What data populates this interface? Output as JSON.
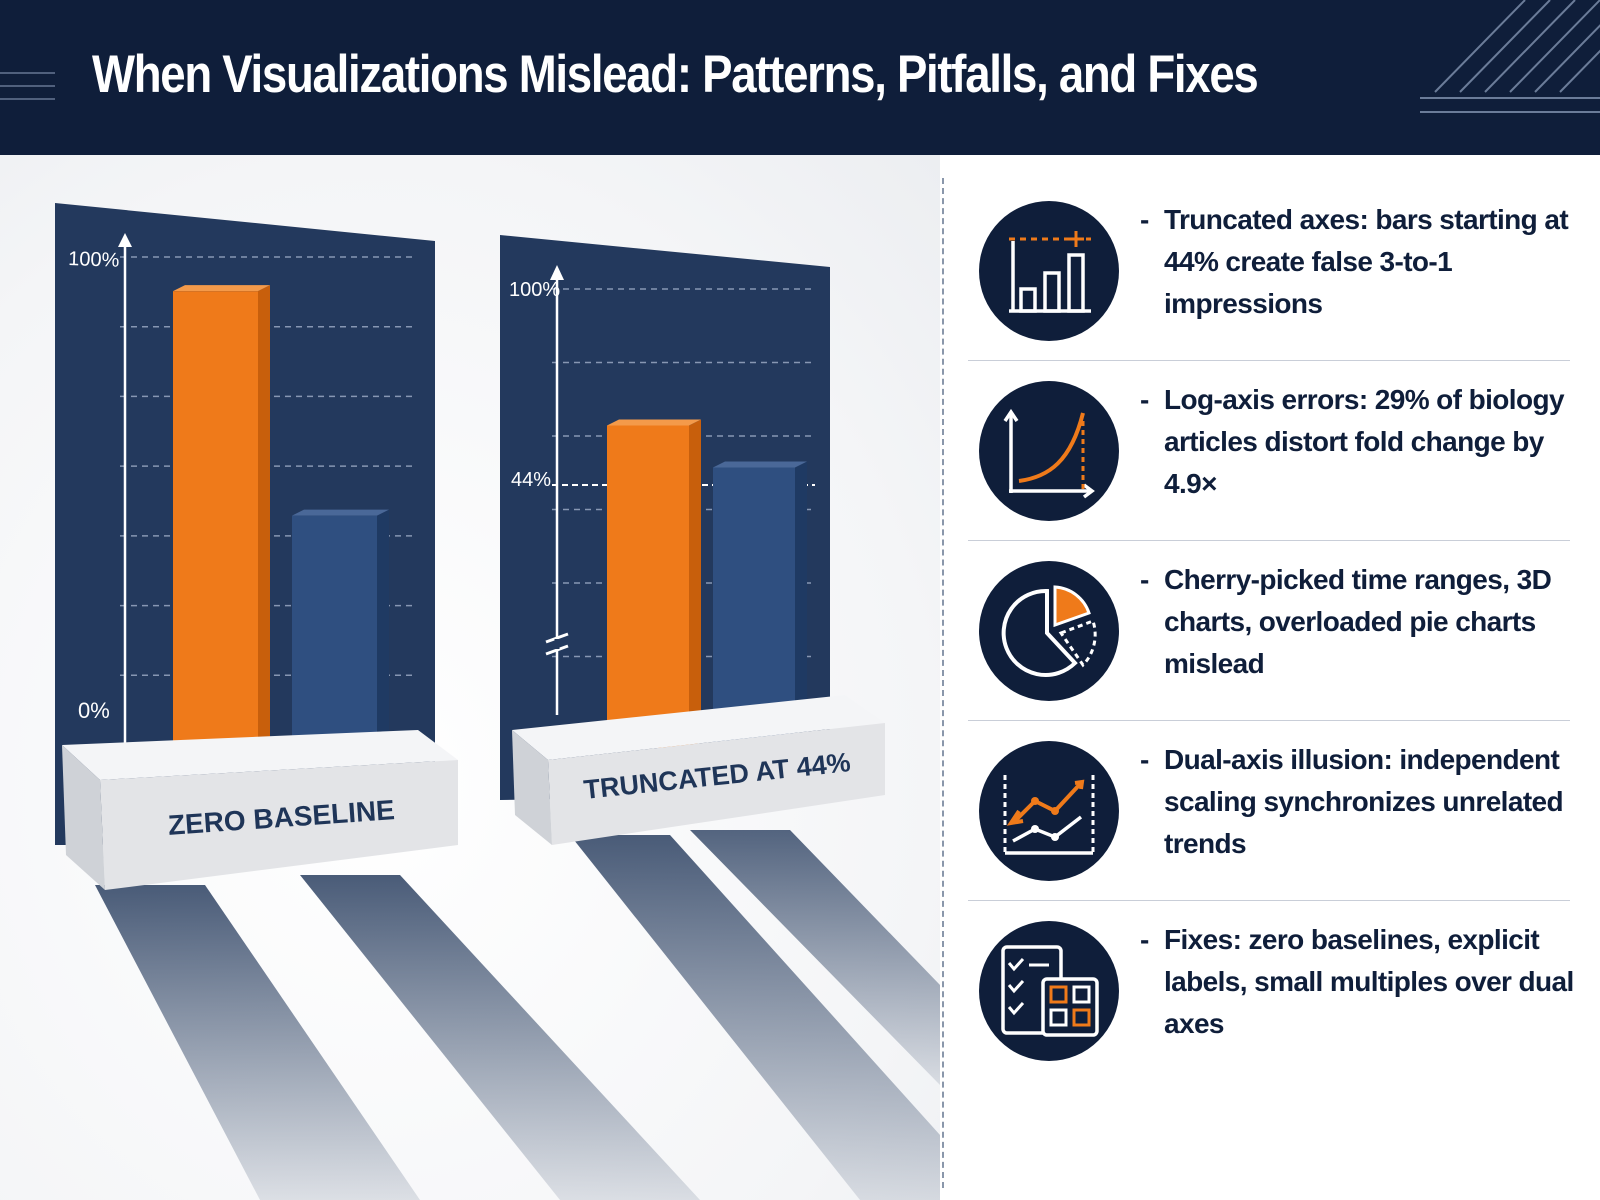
{
  "header": {
    "title": "When Visualizations Mislead: Patterns, Pitfalls, and Fixes"
  },
  "colors": {
    "navy": "#0f1e3a",
    "panel": "#23395d",
    "orange": "#ef7a1a",
    "blue_bar": "#2f4f80",
    "pedestal": "#e6e7ea"
  },
  "chart_data": [
    {
      "type": "bar",
      "categories": [
        "",
        ""
      ],
      "values": [
        93,
        47
      ],
      "ylim": [
        0,
        100
      ],
      "tick_labels": [
        "100%",
        "0%"
      ],
      "pedestal_label": "ZERO BASELINE"
    },
    {
      "type": "bar",
      "categories": [
        "",
        ""
      ],
      "values": [
        61,
        49
      ],
      "ylim": [
        44,
        100
      ],
      "tick_labels": [
        "100%",
        "44%"
      ],
      "axis_break": true,
      "pedestal_label": "TRUNCATED AT 44%"
    }
  ],
  "items": [
    {
      "icon": "truncated-bar-chart-icon",
      "dash": "-",
      "text": "Truncated axes: bars starting at 44% create false 3-to-1 impressions"
    },
    {
      "icon": "log-curve-icon",
      "dash": "-",
      "text": "Log-axis errors: 29% of biology articles distort fold change by 4.9×"
    },
    {
      "icon": "pie-chart-icon",
      "dash": "-",
      "text": "Cherry-picked time ranges, 3D charts, overloaded pie charts mislead"
    },
    {
      "icon": "dual-axis-lines-icon",
      "dash": "-",
      "text": "Dual-axis illusion: independent scaling synchronizes unrelated trends"
    },
    {
      "icon": "checklist-grid-icon",
      "dash": "-",
      "text": "Fixes: zero baselines, explicit labels, small multiples over dual axes"
    }
  ]
}
